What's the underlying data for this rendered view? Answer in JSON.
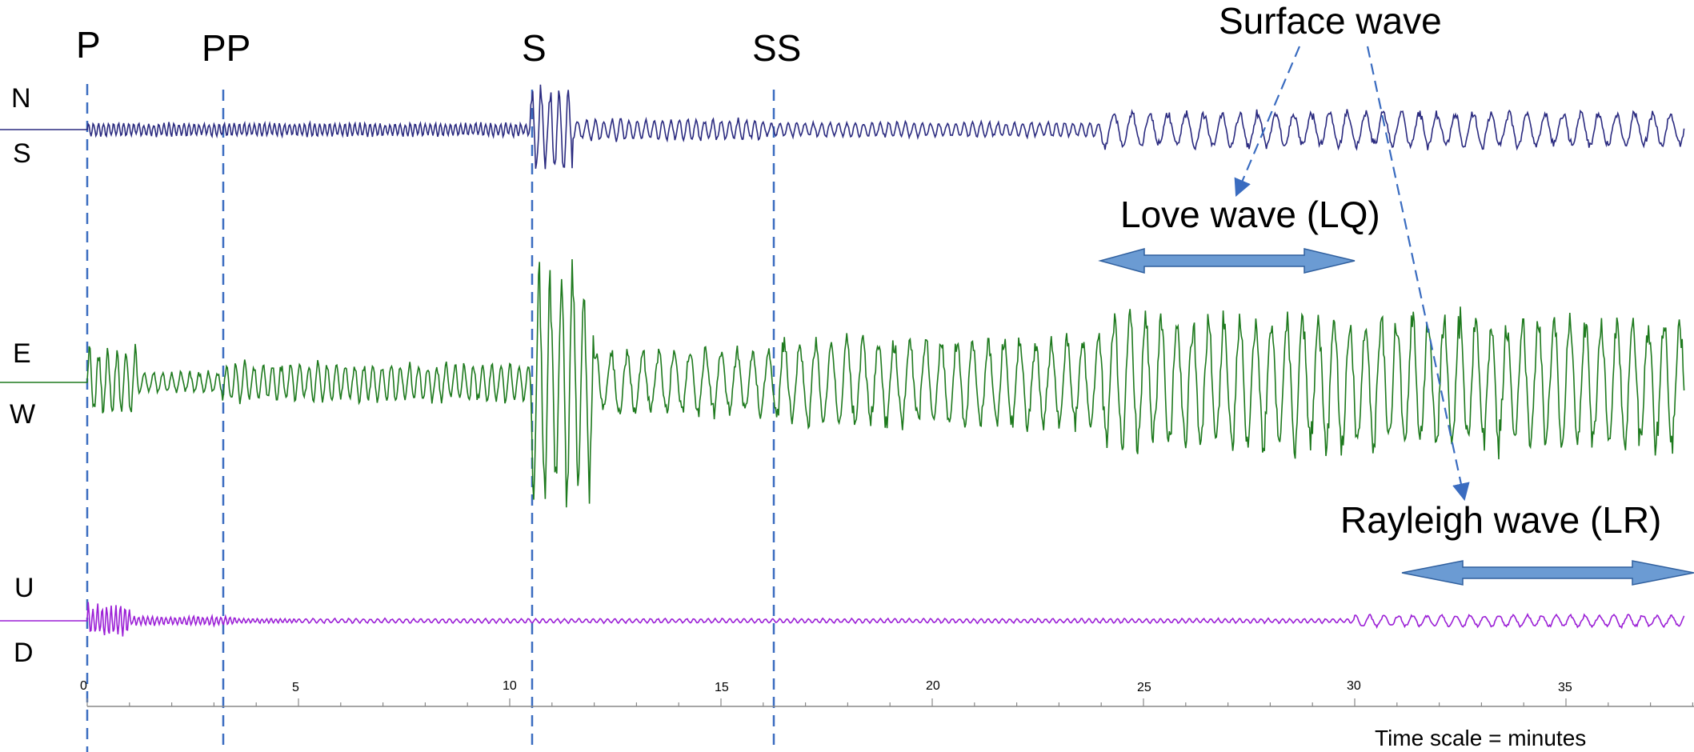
{
  "phases": [
    {
      "label": "P",
      "time": 0
    },
    {
      "label": "PP",
      "time": 3.2
    },
    {
      "label": "S",
      "time": 10.5
    },
    {
      "label": "SS",
      "time": 16.25
    }
  ],
  "components": [
    {
      "top_label": "N",
      "bottom_label": "S",
      "color": "#2b2b80"
    },
    {
      "top_label": "E",
      "bottom_label": "W",
      "color": "#1e7a1e"
    },
    {
      "top_label": "U",
      "bottom_label": "D",
      "color": "#9b1fd6"
    }
  ],
  "annotations": {
    "surface_wave": "Surface wave",
    "love_wave": "Love wave (LQ)",
    "rayleigh_wave": "Rayleigh wave (LR)"
  },
  "axis": {
    "ticks": [
      "0",
      "5",
      "10",
      "15",
      "20",
      "25",
      "30",
      "35"
    ],
    "scale_label": "Time scale = minutes"
  },
  "colors": {
    "phase_lines": "#3a6cc0",
    "arrow_fill": "#6b9bd3",
    "arrow_stroke": "#2f5f9e"
  }
}
